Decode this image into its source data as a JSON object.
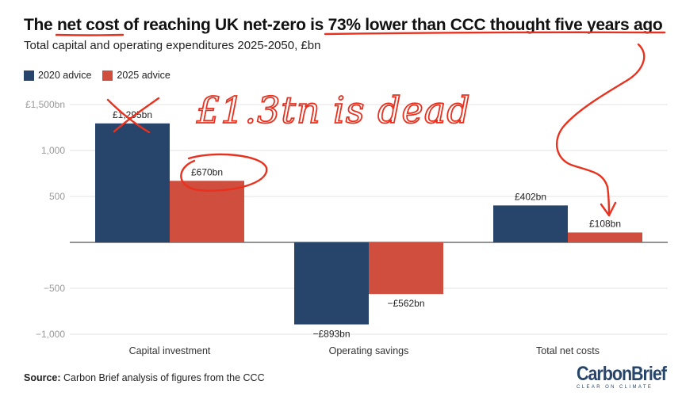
{
  "header": {
    "title_parts": [
      "The ",
      "net cost",
      " of reaching UK net-zero is ",
      "73% lower than CCC thought five years ago"
    ],
    "subtitle": "Total capital and operating expenditures 2025-2050, £bn"
  },
  "legend": [
    {
      "label": "2020 advice",
      "color": "#27456b"
    },
    {
      "label": "2025 advice",
      "color": "#cf4e3e"
    }
  ],
  "chart_data": {
    "type": "bar",
    "categories": [
      "Capital investment",
      "Operating savings",
      "Total net costs"
    ],
    "series": [
      {
        "name": "2020 advice",
        "color": "#27456b",
        "values": [
          1295,
          -893,
          402
        ],
        "labels": [
          "£1,295bn",
          "−£893bn",
          "£402bn"
        ]
      },
      {
        "name": "2025 advice",
        "color": "#cf4e3e",
        "values": [
          670,
          -562,
          108
        ],
        "labels": [
          "£670bn",
          "−£562bn",
          "£108bn"
        ]
      }
    ],
    "yticks": [
      {
        "value": 1500,
        "label": "£1,500bn"
      },
      {
        "value": 1000,
        "label": "1,000"
      },
      {
        "value": 500,
        "label": "500"
      },
      {
        "value": 0,
        "label": ""
      },
      {
        "value": -500,
        "label": "−500"
      },
      {
        "value": -1000,
        "label": "−1,000"
      }
    ],
    "ylim": [
      -1000,
      1500
    ],
    "grid": true,
    "legend_position": "top-left"
  },
  "annotation": {
    "handwritten_text": "£1.3tn is dead",
    "color": "#e8311f"
  },
  "footer": {
    "source_label": "Source:",
    "source_text": " Carbon Brief analysis of figures from the CCC",
    "brand_name": "CarbonBrief",
    "brand_tagline": "CLEAR ON CLIMATE"
  }
}
